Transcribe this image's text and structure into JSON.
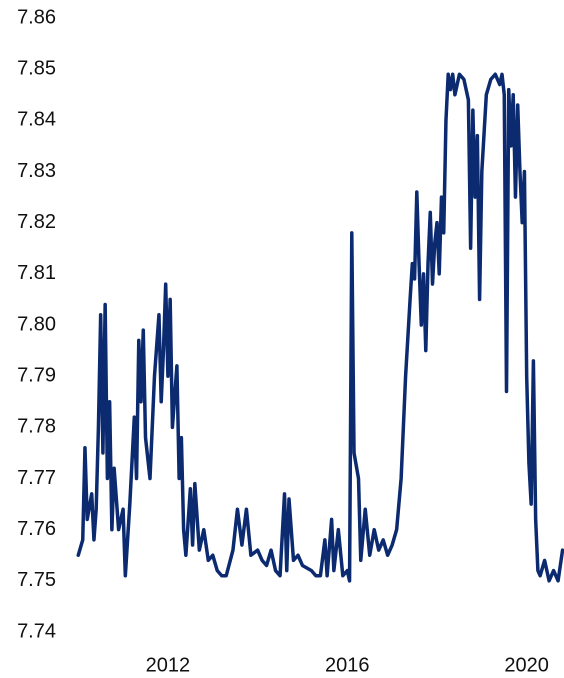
{
  "chart_data": {
    "type": "line",
    "color": "#0b2a6f",
    "xlim": [
      2009.95,
      2020.81
    ],
    "xticks": [
      2012,
      2016,
      2020
    ],
    "ylim": [
      7.74,
      7.86
    ],
    "yticks": [
      7.86,
      7.85,
      7.84,
      7.83,
      7.82,
      7.81,
      {
        "value": 7.8,
        "label": "7.80"
      },
      7.79,
      7.78,
      7.77,
      7.76,
      7.75,
      7.74
    ],
    "grid": false,
    "x": [
      2010.0,
      2010.1,
      2010.15,
      2010.2,
      2010.3,
      2010.35,
      2010.4,
      2010.45,
      2010.5,
      2010.55,
      2010.6,
      2010.65,
      2010.7,
      2010.75,
      2010.8,
      2010.9,
      2011.0,
      2011.05,
      2011.15,
      2011.25,
      2011.3,
      2011.35,
      2011.4,
      2011.45,
      2011.5,
      2011.6,
      2011.7,
      2011.8,
      2011.85,
      2011.9,
      2011.95,
      2012.0,
      2012.05,
      2012.1,
      2012.2,
      2012.25,
      2012.3,
      2012.35,
      2012.4,
      2012.5,
      2012.55,
      2012.6,
      2012.7,
      2012.8,
      2012.9,
      2013.0,
      2013.1,
      2013.2,
      2013.3,
      2013.45,
      2013.55,
      2013.65,
      2013.75,
      2013.85,
      2014.0,
      2014.1,
      2014.2,
      2014.3,
      2014.4,
      2014.5,
      2014.6,
      2014.65,
      2014.7,
      2014.8,
      2014.9,
      2015.0,
      2015.2,
      2015.3,
      2015.4,
      2015.5,
      2015.55,
      2015.65,
      2015.7,
      2015.8,
      2015.9,
      2016.0,
      2016.05,
      2016.1,
      2016.15,
      2016.25,
      2016.3,
      2016.4,
      2016.5,
      2016.6,
      2016.7,
      2016.8,
      2016.9,
      2017.0,
      2017.1,
      2017.2,
      2017.3,
      2017.4,
      2017.45,
      2017.5,
      2017.55,
      2017.6,
      2017.65,
      2017.7,
      2017.75,
      2017.8,
      2017.85,
      2017.9,
      2017.95,
      2018.0,
      2018.05,
      2018.1,
      2018.15,
      2018.2,
      2018.25,
      2018.3,
      2018.35,
      2018.4,
      2018.5,
      2018.6,
      2018.7,
      2018.75,
      2018.8,
      2018.85,
      2018.9,
      2018.95,
      2019.0,
      2019.1,
      2019.2,
      2019.3,
      2019.4,
      2019.45,
      2019.5,
      2019.55,
      2019.6,
      2019.65,
      2019.7,
      2019.75,
      2019.8,
      2019.85,
      2019.9,
      2019.95,
      2020.0,
      2020.05,
      2020.1,
      2020.15,
      2020.2,
      2020.25,
      2020.3,
      2020.4,
      2020.5,
      2020.6,
      2020.7,
      2020.8
    ],
    "values": [
      7.755,
      7.758,
      7.776,
      7.762,
      7.767,
      7.758,
      7.764,
      7.78,
      7.802,
      7.775,
      7.804,
      7.77,
      7.785,
      7.76,
      7.772,
      7.76,
      7.764,
      7.751,
      7.765,
      7.782,
      7.77,
      7.797,
      7.785,
      7.799,
      7.778,
      7.77,
      7.79,
      7.802,
      7.785,
      7.795,
      7.808,
      7.79,
      7.805,
      7.78,
      7.792,
      7.77,
      7.778,
      7.76,
      7.755,
      7.768,
      7.757,
      7.769,
      7.756,
      7.76,
      7.754,
      7.755,
      7.752,
      7.751,
      7.751,
      7.756,
      7.764,
      7.757,
      7.764,
      7.755,
      7.756,
      7.754,
      7.753,
      7.756,
      7.752,
      7.751,
      7.767,
      7.752,
      7.766,
      7.754,
      7.755,
      7.753,
      7.752,
      7.751,
      7.751,
      7.758,
      7.751,
      7.762,
      7.752,
      7.76,
      7.751,
      7.752,
      7.75,
      7.818,
      7.775,
      7.77,
      7.754,
      7.764,
      7.755,
      7.76,
      7.756,
      7.758,
      7.755,
      7.757,
      7.76,
      7.77,
      7.79,
      7.805,
      7.812,
      7.809,
      7.826,
      7.812,
      7.8,
      7.81,
      7.795,
      7.812,
      7.822,
      7.808,
      7.816,
      7.82,
      7.81,
      7.825,
      7.818,
      7.84,
      7.849,
      7.846,
      7.849,
      7.845,
      7.849,
      7.848,
      7.844,
      7.815,
      7.842,
      7.825,
      7.837,
      7.805,
      7.83,
      7.845,
      7.848,
      7.849,
      7.847,
      7.849,
      7.845,
      7.787,
      7.846,
      7.835,
      7.845,
      7.825,
      7.843,
      7.83,
      7.82,
      7.83,
      7.79,
      7.773,
      7.765,
      7.793,
      7.762,
      7.752,
      7.751,
      7.754,
      7.75,
      7.752,
      7.75,
      7.756
    ]
  }
}
